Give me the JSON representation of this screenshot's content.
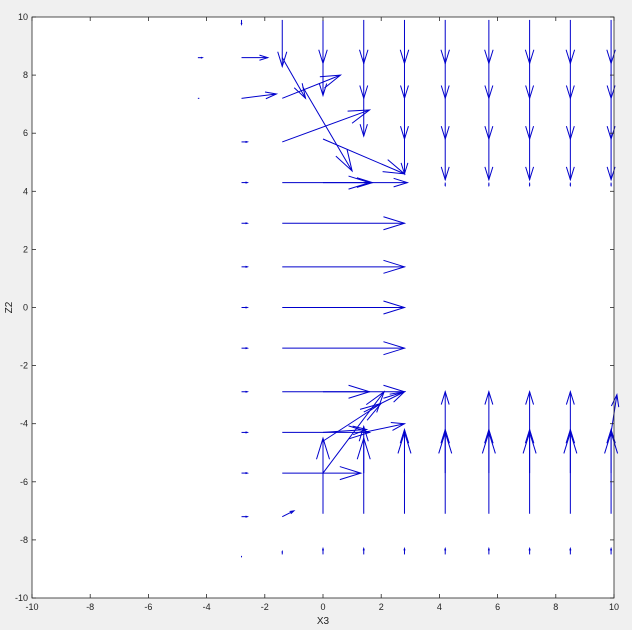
{
  "chart_data": {
    "type": "quiver",
    "title": "",
    "xlabel": "X3",
    "ylabel": "Z2",
    "xlim": [
      -10,
      10
    ],
    "ylim": [
      -10,
      10
    ],
    "xticks": [
      -10,
      -8,
      -6,
      -4,
      -2,
      0,
      2,
      4,
      6,
      8,
      10
    ],
    "yticks": [
      -10,
      -8,
      -6,
      -4,
      -2,
      0,
      2,
      4,
      6,
      8,
      10
    ],
    "xtick_labels": [
      "-10",
      "-8",
      "-6",
      "-4",
      "-2",
      "0",
      "2",
      "4",
      "6",
      "8",
      "10"
    ],
    "ytick_labels": [
      "-10",
      "-8",
      "-6",
      "-4",
      "-2",
      "0",
      "2",
      "4",
      "6",
      "8",
      "10"
    ],
    "grid": false,
    "arrow_color": "#0000cc",
    "background_color": "#ffffff",
    "figure_color": "#f0f0f0",
    "arrows": [
      {
        "x": -4.3,
        "y": 8.6,
        "u": 0.15,
        "v": 0
      },
      {
        "x": -2.8,
        "y": 8.6,
        "u": 0.9,
        "v": 0
      },
      {
        "x": -4.3,
        "y": 7.2,
        "u": 0.05,
        "v": 0
      },
      {
        "x": -2.8,
        "y": 7.2,
        "u": 1.2,
        "v": 0.15
      },
      {
        "x": -1.4,
        "y": 7.2,
        "u": 2.0,
        "v": 0.8
      },
      {
        "x": -1.4,
        "y": 5.7,
        "u": 3.0,
        "v": 1.1
      },
      {
        "x": 0.0,
        "y": 5.8,
        "u": 2.8,
        "v": -1.2
      },
      {
        "x": -2.8,
        "y": 5.7,
        "u": 0.2,
        "v": 0
      },
      {
        "x": -2.8,
        "y": 4.3,
        "u": 0.2,
        "v": 0
      },
      {
        "x": -1.4,
        "y": 4.3,
        "u": 3.0,
        "v": 0
      },
      {
        "x": 0.0,
        "y": 4.3,
        "u": 1.7,
        "v": 0
      },
      {
        "x": 1.4,
        "y": 4.3,
        "u": 1.5,
        "v": 0
      },
      {
        "x": -1.4,
        "y": 9.9,
        "u": 0,
        "v": -1.6
      },
      {
        "x": -1.4,
        "y": 8.6,
        "u": 0.8,
        "v": -1.4
      },
      {
        "x": -0.7,
        "y": 7.6,
        "u": 1.7,
        "v": -2.9
      },
      {
        "x": 0.0,
        "y": 9.9,
        "u": 0,
        "v": -1.5
      },
      {
        "x": 0.0,
        "y": 8.6,
        "u": 0,
        "v": -1.3
      },
      {
        "x": 1.4,
        "y": 9.9,
        "u": 0,
        "v": -1.5
      },
      {
        "x": 1.4,
        "y": 8.6,
        "u": 0,
        "v": -1.4
      },
      {
        "x": 1.4,
        "y": 7.2,
        "u": 0,
        "v": -1.3
      },
      {
        "x": 2.8,
        "y": 9.9,
        "u": 0,
        "v": -1.5
      },
      {
        "x": 2.8,
        "y": 8.6,
        "u": 0,
        "v": -1.4
      },
      {
        "x": 2.8,
        "y": 7.2,
        "u": 0,
        "v": -1.4
      },
      {
        "x": 2.8,
        "y": 5.8,
        "u": 0,
        "v": -1.2
      },
      {
        "x": 4.2,
        "y": 9.9,
        "u": 0,
        "v": -1.5
      },
      {
        "x": 4.2,
        "y": 8.6,
        "u": 0,
        "v": -1.4
      },
      {
        "x": 4.2,
        "y": 7.2,
        "u": 0,
        "v": -1.4
      },
      {
        "x": 4.2,
        "y": 5.8,
        "u": 0,
        "v": -1.4
      },
      {
        "x": 5.7,
        "y": 9.9,
        "u": 0,
        "v": -1.5
      },
      {
        "x": 5.7,
        "y": 8.6,
        "u": 0,
        "v": -1.4
      },
      {
        "x": 5.7,
        "y": 7.2,
        "u": 0,
        "v": -1.4
      },
      {
        "x": 5.7,
        "y": 5.8,
        "u": 0,
        "v": -1.4
      },
      {
        "x": 7.1,
        "y": 9.9,
        "u": 0,
        "v": -1.5
      },
      {
        "x": 7.1,
        "y": 8.6,
        "u": 0,
        "v": -1.4
      },
      {
        "x": 7.1,
        "y": 7.2,
        "u": 0,
        "v": -1.4
      },
      {
        "x": 7.1,
        "y": 5.8,
        "u": 0,
        "v": -1.4
      },
      {
        "x": 8.5,
        "y": 9.9,
        "u": 0,
        "v": -1.5
      },
      {
        "x": 8.5,
        "y": 8.6,
        "u": 0,
        "v": -1.4
      },
      {
        "x": 8.5,
        "y": 7.2,
        "u": 0,
        "v": -1.4
      },
      {
        "x": 8.5,
        "y": 5.8,
        "u": 0,
        "v": -1.4
      },
      {
        "x": 9.9,
        "y": 9.9,
        "u": 0,
        "v": -1.5
      },
      {
        "x": 9.9,
        "y": 8.6,
        "u": 0,
        "v": -1.4
      },
      {
        "x": 9.9,
        "y": 7.2,
        "u": 0,
        "v": -1.4
      },
      {
        "x": 9.9,
        "y": 5.8,
        "u": 0,
        "v": -1.4
      },
      {
        "x": 4.2,
        "y": 4.3,
        "u": 0,
        "v": -0.1
      },
      {
        "x": 5.7,
        "y": 4.3,
        "u": 0,
        "v": -0.1
      },
      {
        "x": 7.1,
        "y": 4.3,
        "u": 0,
        "v": -0.1
      },
      {
        "x": 8.5,
        "y": 4.3,
        "u": 0,
        "v": -0.1
      },
      {
        "x": 9.9,
        "y": 4.3,
        "u": 0,
        "v": -0.1
      },
      {
        "x": -2.8,
        "y": 2.9,
        "u": 0.2,
        "v": 0
      },
      {
        "x": -1.4,
        "y": 2.9,
        "u": 4.2,
        "v": 0
      },
      {
        "x": -2.8,
        "y": 1.4,
        "u": 0.2,
        "v": 0
      },
      {
        "x": -1.4,
        "y": 1.4,
        "u": 4.2,
        "v": 0
      },
      {
        "x": -2.8,
        "y": 0.0,
        "u": 0.2,
        "v": 0
      },
      {
        "x": -1.4,
        "y": 0.0,
        "u": 4.2,
        "v": 0
      },
      {
        "x": -2.8,
        "y": -1.4,
        "u": 0.2,
        "v": 0
      },
      {
        "x": -1.4,
        "y": -1.4,
        "u": 4.2,
        "v": 0
      },
      {
        "x": -2.8,
        "y": -2.9,
        "u": 0.2,
        "v": 0
      },
      {
        "x": -1.4,
        "y": -2.9,
        "u": 3.0,
        "v": 0
      },
      {
        "x": 0.0,
        "y": -2.9,
        "u": 2.8,
        "v": 0
      },
      {
        "x": -2.8,
        "y": -4.3,
        "u": 0.2,
        "v": 0
      },
      {
        "x": -1.4,
        "y": -4.3,
        "u": 3.0,
        "v": 0
      },
      {
        "x": 0.0,
        "y": -4.3,
        "u": 1.5,
        "v": 0.1
      },
      {
        "x": 1.4,
        "y": -4.3,
        "u": 1.4,
        "v": 0.3
      },
      {
        "x": 0.0,
        "y": -4.6,
        "u": 2.0,
        "v": 1.3
      },
      {
        "x": 1.4,
        "y": -3.6,
        "u": 1.4,
        "v": 0.7
      },
      {
        "x": -2.8,
        "y": -5.7,
        "u": 0.2,
        "v": 0
      },
      {
        "x": -1.4,
        "y": -5.7,
        "u": 2.7,
        "v": 0
      },
      {
        "x": 0.0,
        "y": -5.7,
        "u": 2.1,
        "v": 2.8
      },
      {
        "x": -2.8,
        "y": -7.2,
        "u": 0.2,
        "v": 0
      },
      {
        "x": -1.4,
        "y": -7.2,
        "u": 0.4,
        "v": 0.2
      },
      {
        "x": 0.0,
        "y": -7.1,
        "u": 0,
        "v": 2.6
      },
      {
        "x": 1.4,
        "y": -7.1,
        "u": 0,
        "v": 2.6
      },
      {
        "x": 1.4,
        "y": -5.7,
        "u": 0,
        "v": 1.6
      },
      {
        "x": 2.8,
        "y": -7.1,
        "u": 0,
        "v": 2.8
      },
      {
        "x": 2.8,
        "y": -5.7,
        "u": 0,
        "v": 1.5
      },
      {
        "x": 4.2,
        "y": -7.1,
        "u": 0,
        "v": 2.8
      },
      {
        "x": 4.2,
        "y": -5.7,
        "u": 0,
        "v": 1.5
      },
      {
        "x": 4.2,
        "y": -4.3,
        "u": 0,
        "v": 1.4
      },
      {
        "x": 5.7,
        "y": -7.1,
        "u": 0,
        "v": 2.8
      },
      {
        "x": 5.7,
        "y": -5.7,
        "u": 0,
        "v": 1.5
      },
      {
        "x": 5.7,
        "y": -4.3,
        "u": 0,
        "v": 1.4
      },
      {
        "x": 7.1,
        "y": -7.1,
        "u": 0,
        "v": 2.8
      },
      {
        "x": 7.1,
        "y": -5.7,
        "u": 0,
        "v": 1.5
      },
      {
        "x": 7.1,
        "y": -4.3,
        "u": 0,
        "v": 1.4
      },
      {
        "x": 8.5,
        "y": -7.1,
        "u": 0,
        "v": 2.8
      },
      {
        "x": 8.5,
        "y": -5.7,
        "u": 0,
        "v": 1.5
      },
      {
        "x": 8.5,
        "y": -4.3,
        "u": 0,
        "v": 1.4
      },
      {
        "x": 9.9,
        "y": -7.1,
        "u": 0,
        "v": 2.8
      },
      {
        "x": 9.9,
        "y": -5.7,
        "u": 0,
        "v": 1.5
      },
      {
        "x": 9.9,
        "y": -4.3,
        "u": 0.2,
        "v": 1.3
      },
      {
        "x": -1.4,
        "y": -8.5,
        "u": 0,
        "v": 0.1
      },
      {
        "x": 0.0,
        "y": -8.5,
        "u": 0,
        "v": 0.2
      },
      {
        "x": 1.4,
        "y": -8.5,
        "u": 0,
        "v": 0.2
      },
      {
        "x": 2.8,
        "y": -8.5,
        "u": 0,
        "v": 0.2
      },
      {
        "x": 4.2,
        "y": -8.5,
        "u": 0,
        "v": 0.2
      },
      {
        "x": 5.7,
        "y": -8.5,
        "u": 0,
        "v": 0.2
      },
      {
        "x": 7.1,
        "y": -8.5,
        "u": 0,
        "v": 0.2
      },
      {
        "x": 8.5,
        "y": -8.5,
        "u": 0,
        "v": 0.2
      },
      {
        "x": 9.9,
        "y": -8.5,
        "u": 0,
        "v": 0.2
      },
      {
        "x": -2.8,
        "y": 9.9,
        "u": 0,
        "v": -0.15
      },
      {
        "x": -2.8,
        "y": -8.6,
        "u": 0,
        "v": 0.05
      }
    ]
  }
}
